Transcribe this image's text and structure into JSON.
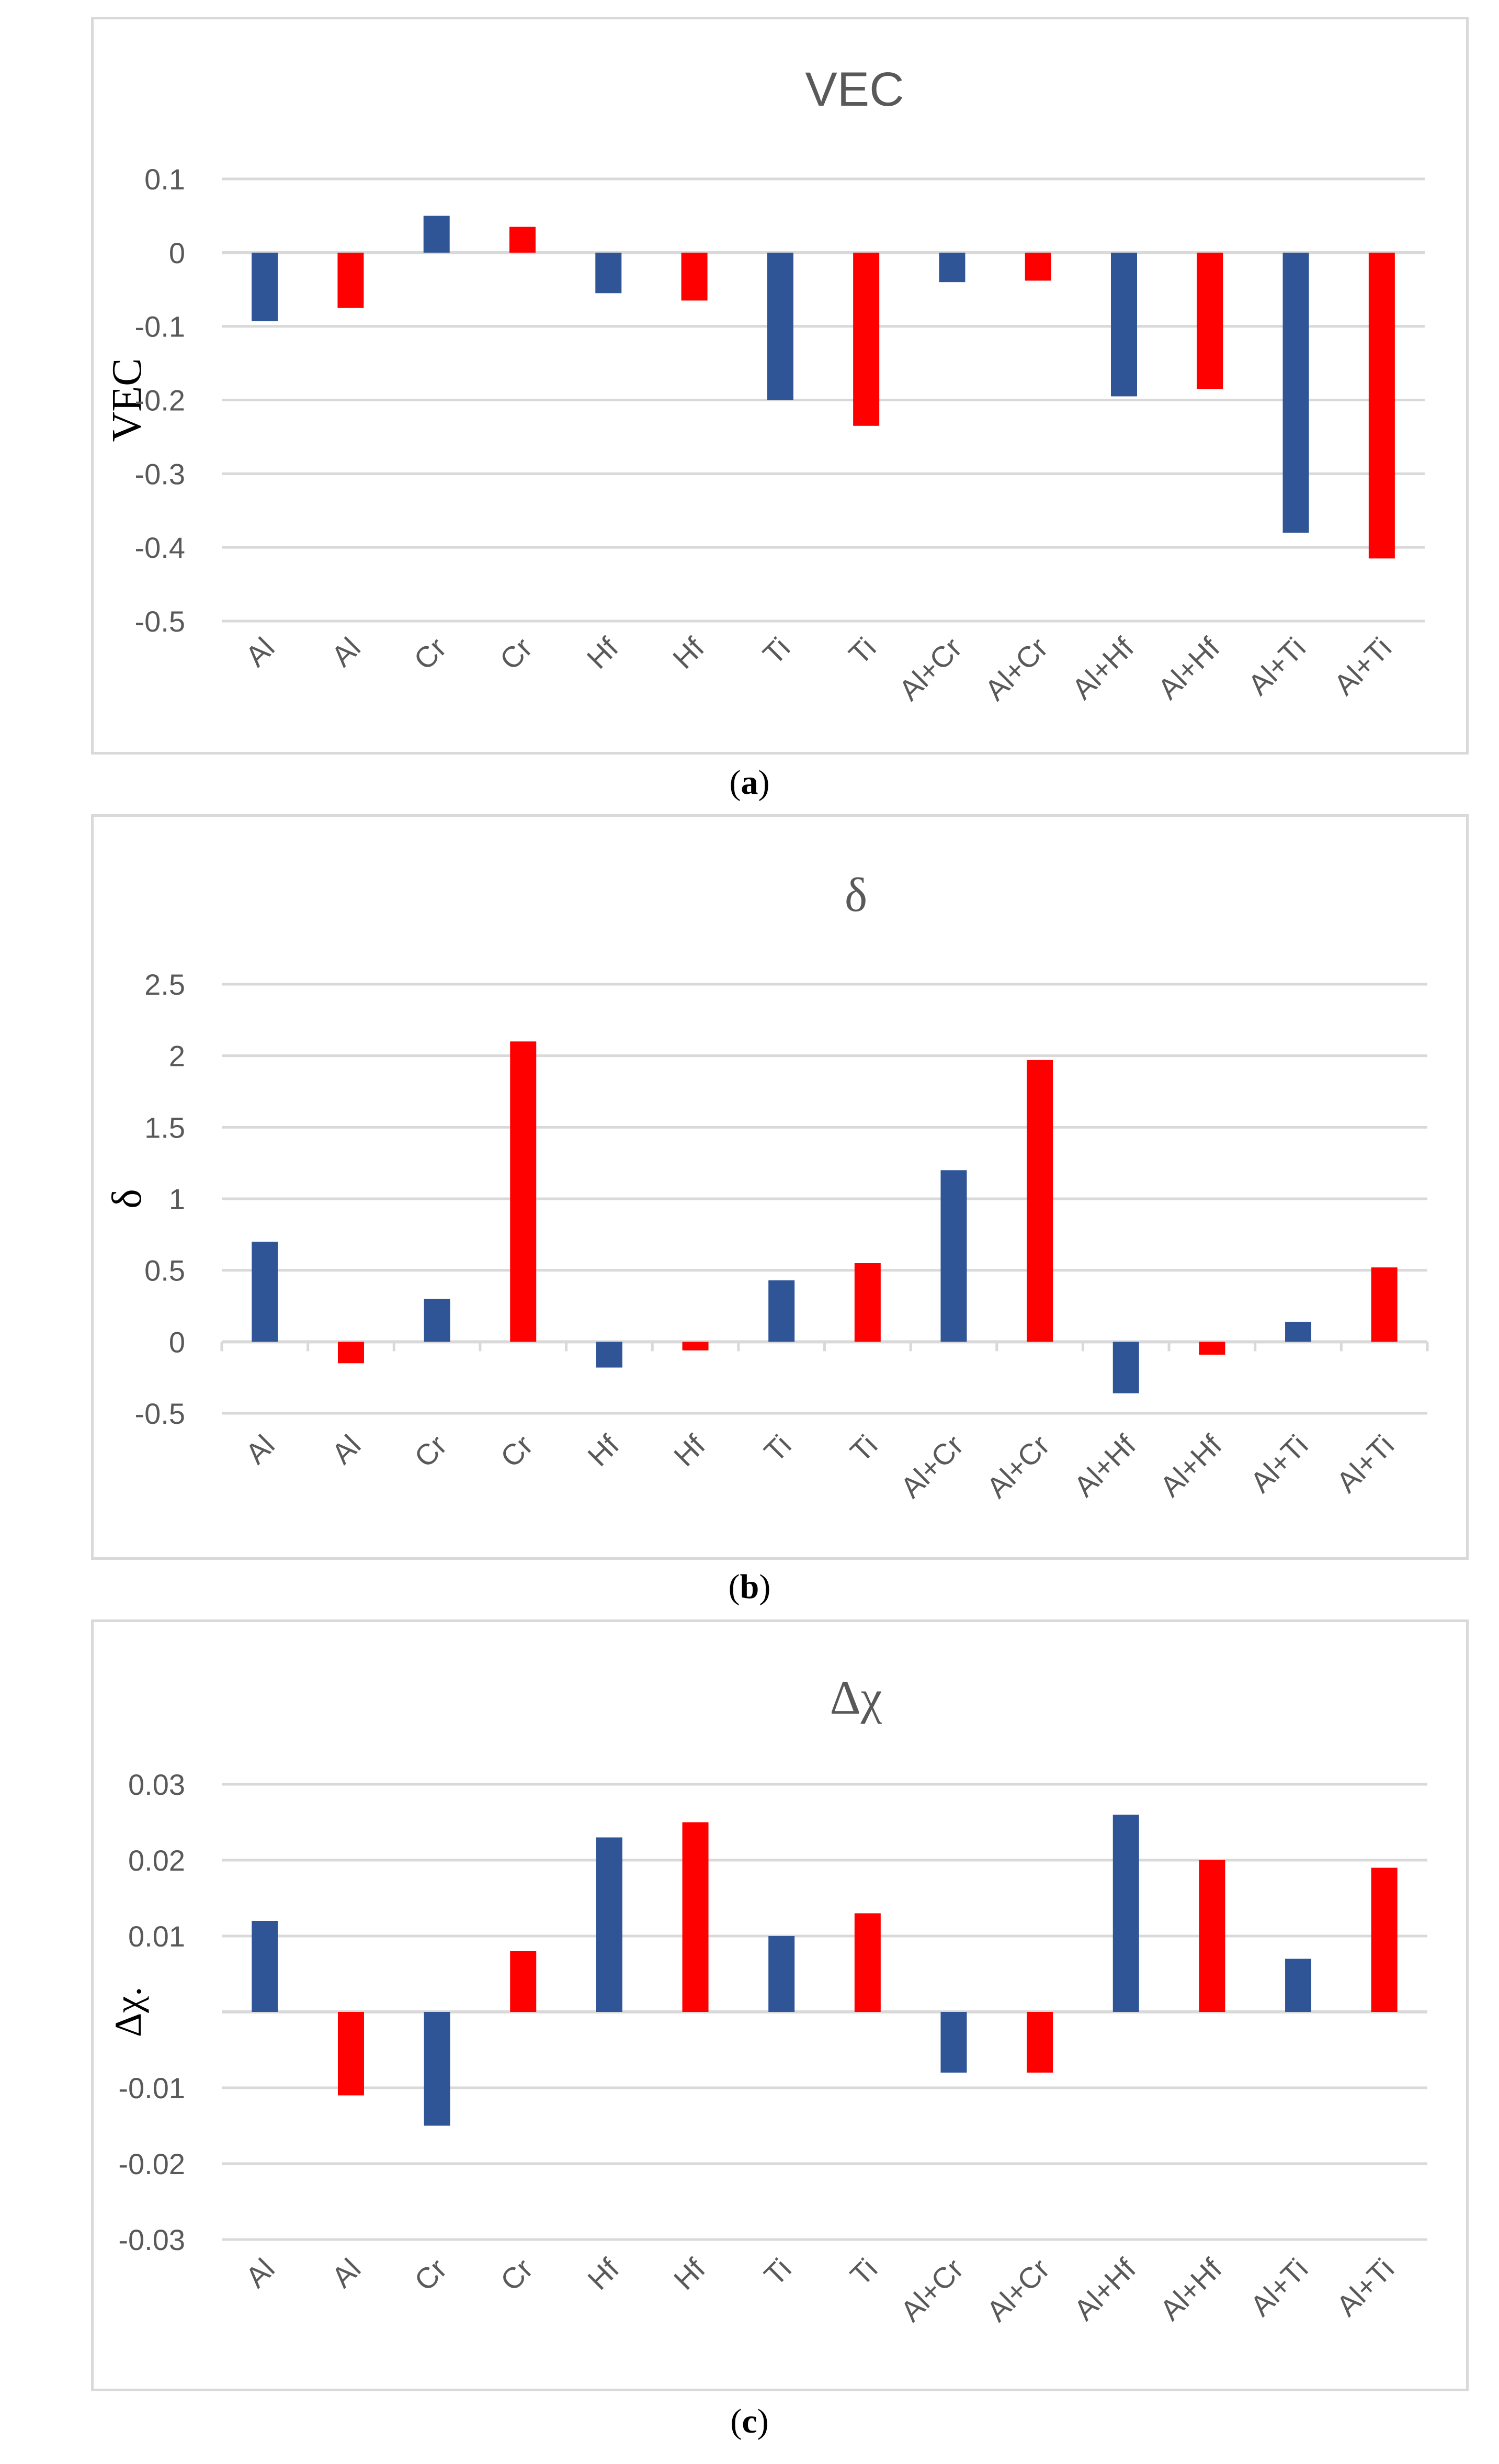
{
  "colors": {
    "series_blue": "#2f5597",
    "series_red": "#ff0000",
    "grid": "#d9d9d9",
    "axis_text": "#595959"
  },
  "chart_data": [
    {
      "type": "bar",
      "title": "VEC",
      "ylabel": "VEC",
      "caption_letter": "a",
      "categories": [
        "Al",
        "Al",
        "Cr",
        "Cr",
        "Hf",
        "Hf",
        "Ti",
        "Ti",
        "Al+Cr",
        "Al+Cr",
        "Al+Hf",
        "Al+Hf",
        "Al+Ti",
        "Al+Ti"
      ],
      "bar_colors": [
        "blue",
        "red",
        "blue",
        "red",
        "blue",
        "red",
        "blue",
        "red",
        "blue",
        "red",
        "blue",
        "red",
        "blue",
        "red"
      ],
      "values": [
        -0.093,
        -0.075,
        0.05,
        0.035,
        -0.055,
        -0.065,
        -0.2,
        -0.235,
        -0.04,
        -0.038,
        -0.195,
        -0.185,
        -0.38,
        -0.415
      ],
      "ylim": [
        -0.5,
        0.1
      ],
      "yticks": [
        0.1,
        0,
        -0.1,
        -0.2,
        -0.3,
        -0.4,
        -0.5
      ],
      "ytick_labels": [
        "0.1",
        "0",
        "-0.1",
        "-0.2",
        "-0.3",
        "-0.4",
        "-0.5"
      ],
      "grid": true
    },
    {
      "type": "bar",
      "title": "δ",
      "ylabel": "δ",
      "caption_letter": "b",
      "categories": [
        "Al",
        "Al",
        "Cr",
        "Cr",
        "Hf",
        "Hf",
        "Ti",
        "Ti",
        "Al+Cr",
        "Al+Cr",
        "Al+Hf",
        "Al+Hf",
        "Al+Ti",
        "Al+Ti"
      ],
      "bar_colors": [
        "blue",
        "red",
        "blue",
        "red",
        "blue",
        "red",
        "blue",
        "red",
        "blue",
        "red",
        "blue",
        "red",
        "blue",
        "red"
      ],
      "values": [
        0.7,
        -0.15,
        0.3,
        2.1,
        -0.18,
        -0.06,
        0.43,
        0.55,
        1.2,
        1.97,
        -0.36,
        -0.09,
        0.14,
        0.52
      ],
      "ylim": [
        -0.5,
        2.5
      ],
      "yticks": [
        2.5,
        2,
        1.5,
        1,
        0.5,
        0,
        -0.5
      ],
      "ytick_labels": [
        "2.5",
        "2",
        "1.5",
        "1",
        "0.5",
        "0",
        "-0.5"
      ],
      "grid": true
    },
    {
      "type": "bar",
      "title": "Δχ",
      "ylabel": "Δχ.",
      "caption_letter": "c",
      "categories": [
        "Al",
        "Al",
        "Cr",
        "Cr",
        "Hf",
        "Hf",
        "Ti",
        "Ti",
        "Al+Cr",
        "Al+Cr",
        "Al+Hf",
        "Al+Hf",
        "Al+Ti",
        "Al+Ti"
      ],
      "bar_colors": [
        "blue",
        "red",
        "blue",
        "red",
        "blue",
        "red",
        "blue",
        "red",
        "blue",
        "red",
        "blue",
        "red",
        "blue",
        "red"
      ],
      "values": [
        0.012,
        -0.011,
        -0.015,
        0.008,
        0.023,
        0.025,
        0.01,
        0.013,
        -0.008,
        -0.008,
        0.026,
        0.02,
        0.007,
        0.019
      ],
      "ylim": [
        -0.03,
        0.03
      ],
      "yticks": [
        0.03,
        0.02,
        0.01,
        -0.01,
        -0.02,
        -0.03
      ],
      "ytick_labels": [
        "0.03",
        "0.02",
        "0.01",
        "-0.01",
        "-0.02",
        "-0.03"
      ],
      "grid": true
    }
  ]
}
